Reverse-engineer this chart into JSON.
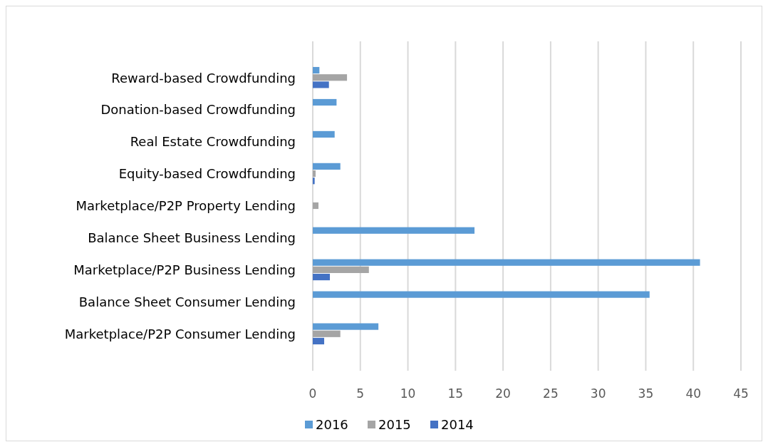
{
  "chart_data": {
    "type": "bar",
    "orientation": "horizontal",
    "categories": [
      "Reward-based Crowdfunding",
      "Donation-based Crowdfunding",
      "Real Estate Crowdfunding",
      "Equity-based Crowdfunding",
      "Marketplace/P2P Property Lending",
      "Balance Sheet Business Lending",
      "Marketplace/P2P Business Lending",
      "Balance Sheet Consumer Lending",
      "Marketplace/P2P Consumer Lending"
    ],
    "series": [
      {
        "name": "2016",
        "color": "#5b9bd5",
        "values": [
          0.7,
          2.5,
          2.3,
          2.9,
          0,
          17.0,
          40.7,
          35.4,
          6.9
        ]
      },
      {
        "name": "2015",
        "color": "#a5a5a5",
        "values": [
          3.6,
          0,
          0,
          0.3,
          0.6,
          0,
          5.9,
          0,
          2.9
        ]
      },
      {
        "name": "2014",
        "color": "#4472c4",
        "values": [
          1.7,
          0,
          0,
          0.2,
          0,
          0,
          1.8,
          0,
          1.2
        ]
      }
    ],
    "xlim": [
      0,
      45
    ],
    "xticks": [
      0,
      5,
      10,
      15,
      20,
      25,
      30,
      35,
      40,
      45
    ],
    "grid": "x",
    "legend": "bottom"
  }
}
